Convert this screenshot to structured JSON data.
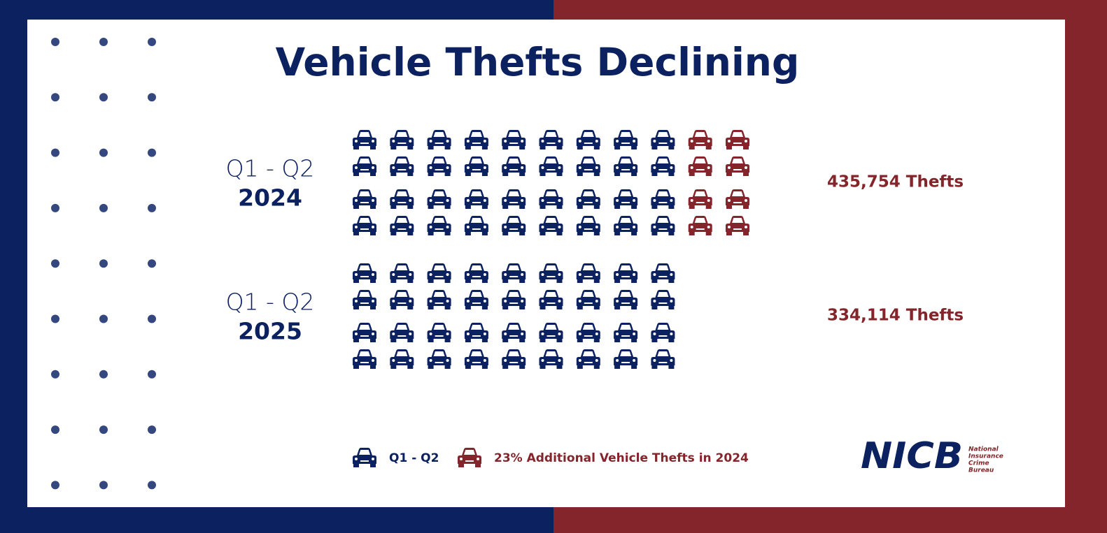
{
  "chart_data": {
    "type": "pictogram",
    "title": "Vehicle Thefts Declining",
    "series": [
      {
        "name": "Q1 - Q2",
        "color": "#0b2160"
      },
      {
        "name": "23% Additional Vehicle Thefts in 2024",
        "color": "#84252b"
      }
    ],
    "rows": [
      {
        "period": "Q1 - Q2",
        "year": "2024",
        "value": 435754,
        "value_label": "435,754 Thefts"
      },
      {
        "period": "Q1 - Q2",
        "year": "2025",
        "value": 334114,
        "value_label": "334,114 Thefts"
      }
    ]
  },
  "logo": {
    "name": "NICB",
    "lines": [
      "National",
      "Insurance",
      "Crime",
      "Bureau"
    ]
  }
}
